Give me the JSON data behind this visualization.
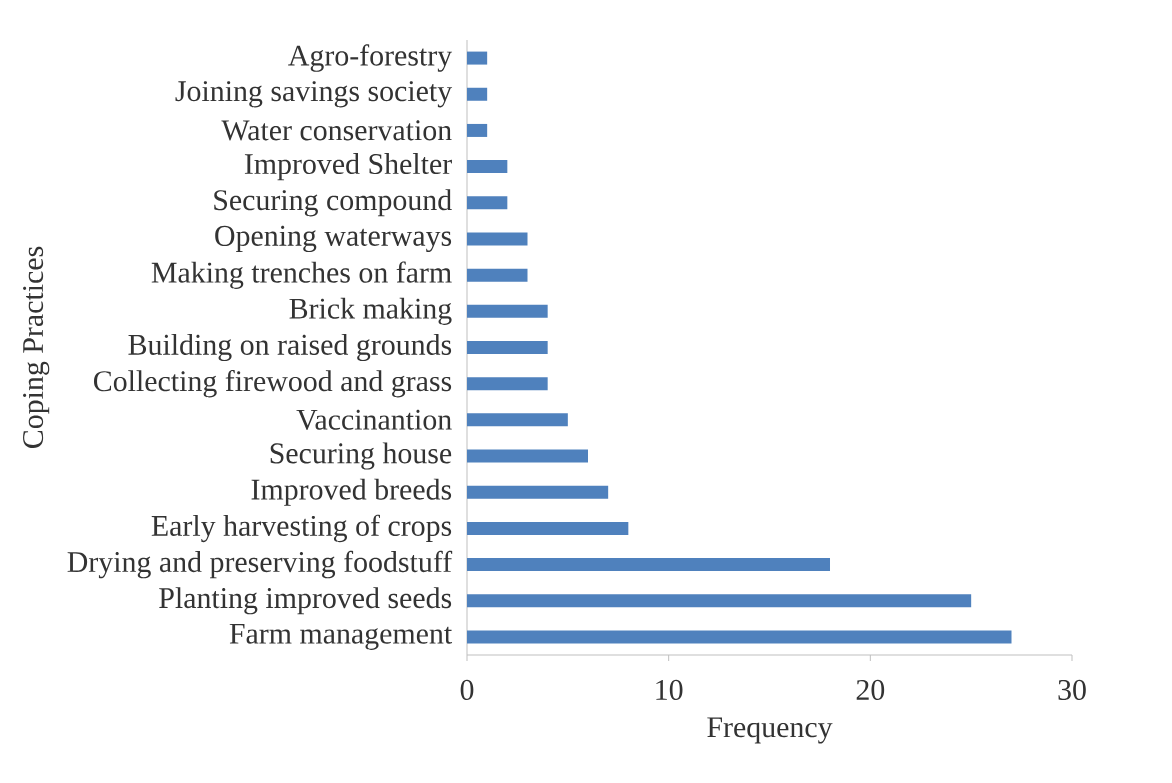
{
  "chart_data": {
    "type": "bar",
    "orientation": "horizontal",
    "xlabel": "Frequency",
    "ylabel": "Coping Practices",
    "categories": [
      "Agro-forestry",
      "Joining savings society",
      "Water conservation",
      "Improved Shelter",
      "Securing compound",
      "Opening waterways",
      "Making trenches on farm",
      "Brick making",
      "Building on raised grounds",
      "Collecting firewood and grass",
      "Vaccinantion",
      "Securing house",
      "Improved breeds",
      "Early harvesting of crops",
      "Drying and preserving foodstuff",
      "Planting improved seeds",
      "Farm management"
    ],
    "values": [
      1,
      1,
      1,
      2,
      2,
      3,
      3,
      4,
      4,
      4,
      5,
      6,
      7,
      8,
      18,
      25,
      27
    ],
    "color": "#4f81bd",
    "xlim": [
      0,
      30
    ],
    "xticks": [
      0,
      10,
      20,
      30
    ]
  }
}
